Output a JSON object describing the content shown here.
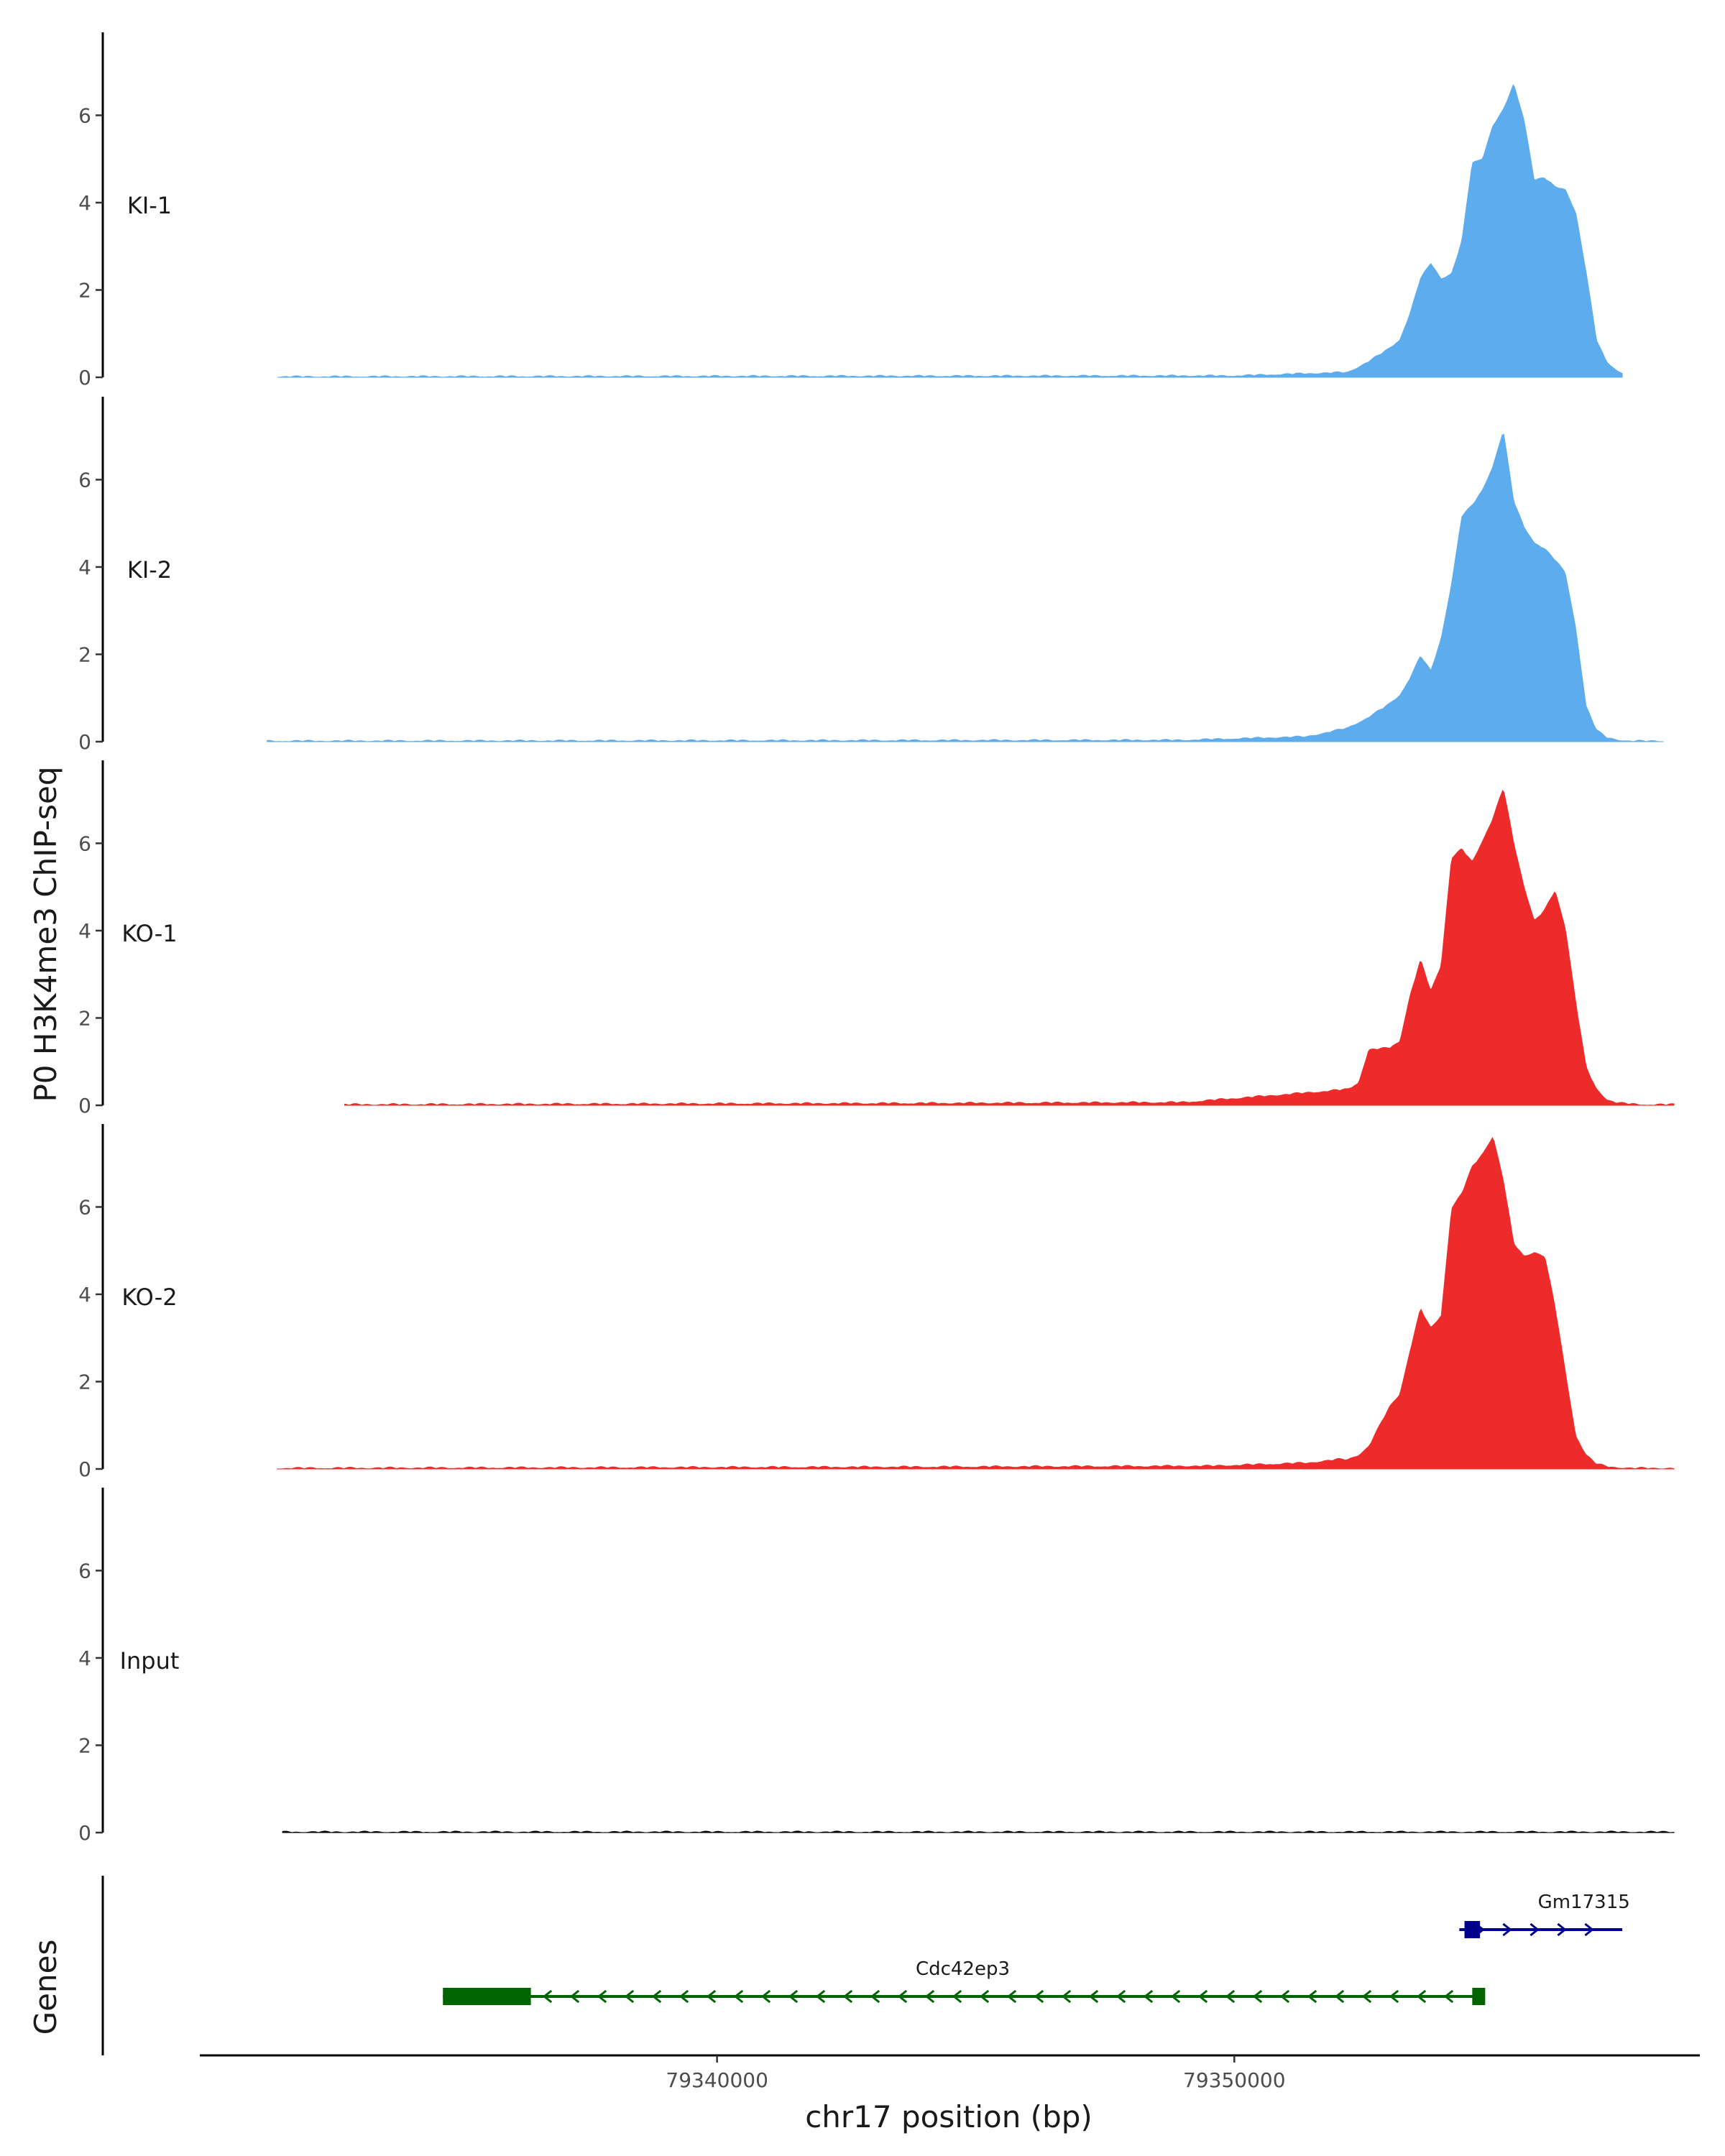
{
  "chart_data": {
    "type": "area",
    "title": "",
    "ylabel": "P0 H3K4me3 ChIP-seq",
    "xlabel": "chr17 position (bp)",
    "xlim": [
      79330000,
      79359000
    ],
    "ylim": [
      0,
      7.9
    ],
    "x_ticks": [
      79340000,
      79350000
    ],
    "x_tick_labels": [
      "79340000",
      "79350000"
    ],
    "y_ticks": [
      0,
      2,
      4,
      6
    ],
    "y_tick_labels": [
      "0",
      "2",
      "4",
      "6"
    ],
    "colors": {
      "KI": "#5daced",
      "KO": "#ee2b2b",
      "Input": "#000000",
      "gene_Cdc42ep3": "#006400",
      "gene_Gm17315": "#00008b"
    },
    "series": [
      {
        "name": "KI-1",
        "color": "#5daced",
        "x": [
          79331500,
          79350000,
          79352200,
          79352600,
          79353000,
          79353200,
          79353400,
          79353600,
          79353800,
          79354000,
          79354200,
          79354400,
          79354600,
          79354800,
          79355000,
          79355200,
          79355400,
          79355600,
          79355800,
          79356000,
          79356200,
          79356400,
          79356600,
          79356800,
          79357000,
          79357200,
          79357400,
          79357600,
          79357800,
          79358000,
          79358100,
          79358500,
          79357500
        ],
        "values": [
          0,
          0.02,
          0.1,
          0.35,
          0.65,
          0.85,
          1.45,
          2.25,
          2.6,
          2.25,
          2.35,
          3.1,
          4.9,
          5.0,
          5.75,
          6.1,
          6.7,
          5.9,
          4.5,
          4.55,
          4.35,
          4.3,
          3.75,
          2.4,
          0.85,
          0.35,
          0.12,
          0.05,
          0.02,
          0.0,
          0.0,
          0.0,
          0.0
        ],
        "wiggle": 0.035
      },
      {
        "name": "KI-2",
        "color": "#5daced",
        "x": [
          79331300,
          79349000,
          79351400,
          79352200,
          79352600,
          79353000,
          79353200,
          79353400,
          79353600,
          79353800,
          79354000,
          79354200,
          79354400,
          79354600,
          79354800,
          79355000,
          79355200,
          79355400,
          79355600,
          79355800,
          79356000,
          79356200,
          79356400,
          79356600,
          79356800,
          79357000,
          79357200,
          79357400,
          79357600,
          79357800,
          79358000,
          79358300
        ],
        "values": [
          0,
          0.02,
          0.1,
          0.3,
          0.55,
          0.85,
          1.05,
          1.45,
          1.95,
          1.6,
          2.35,
          3.6,
          5.15,
          5.4,
          5.75,
          6.3,
          7.1,
          5.5,
          4.9,
          4.55,
          4.4,
          4.15,
          3.85,
          2.6,
          0.8,
          0.25,
          0.08,
          0.03,
          0.0,
          0.0,
          0.0,
          0.0
        ],
        "wiggle": 0.035
      },
      {
        "name": "KO-1",
        "color": "#ee2b2b",
        "x": [
          79332800,
          79344000,
          79349000,
          79351200,
          79352200,
          79352400,
          79352600,
          79353000,
          79353200,
          79353400,
          79353600,
          79353800,
          79354000,
          79354200,
          79354400,
          79354600,
          79354800,
          79355000,
          79355200,
          79355400,
          79355600,
          79355800,
          79356000,
          79356200,
          79356400,
          79356600,
          79356800,
          79357000,
          79357200,
          79357400,
          79357600,
          79357800,
          79358000,
          79358500
        ],
        "values": [
          0,
          0.03,
          0.05,
          0.25,
          0.35,
          0.5,
          1.25,
          1.3,
          1.45,
          2.5,
          3.3,
          2.6,
          3.2,
          5.65,
          5.85,
          5.55,
          6.05,
          6.55,
          7.25,
          6.0,
          5.0,
          4.2,
          4.45,
          4.9,
          4.05,
          2.35,
          0.85,
          0.35,
          0.12,
          0.04,
          0.02,
          0.0,
          0.0,
          0.0
        ],
        "wiggle": 0.04
      },
      {
        "name": "KO-2",
        "color": "#ee2b2b",
        "x": [
          79331500,
          79344000,
          79349500,
          79351400,
          79352000,
          79352200,
          79352400,
          79352600,
          79353000,
          79353200,
          79353400,
          79353600,
          79353800,
          79354000,
          79354200,
          79354400,
          79354600,
          79354800,
          79355000,
          79355200,
          79355400,
          79355600,
          79355800,
          79356000,
          79356200,
          79356400,
          79356600,
          79356800,
          79357000,
          79357200,
          79357400,
          79357600,
          79357800,
          79358000,
          79358500
        ],
        "values": [
          0,
          0.03,
          0.05,
          0.12,
          0.2,
          0.2,
          0.3,
          0.5,
          1.4,
          1.7,
          2.7,
          3.65,
          3.2,
          3.5,
          5.95,
          6.3,
          6.9,
          7.2,
          7.6,
          6.6,
          5.15,
          4.85,
          4.95,
          4.85,
          3.7,
          2.2,
          0.75,
          0.3,
          0.1,
          0.04,
          0.02,
          0.0,
          0.0,
          0.0,
          0.0
        ],
        "wiggle": 0.04
      },
      {
        "name": "Input",
        "color": "#000000",
        "x": [
          79331600,
          79358500
        ],
        "values": [
          0,
          0
        ],
        "wiggle": 0.035
      }
    ],
    "genes": [
      {
        "name": "Cdc42ep3",
        "strand": "-",
        "start": 79334700,
        "end": 79354800,
        "thick_segments": [
          [
            79334700,
            79336400
          ],
          [
            79354600,
            79354850
          ]
        ],
        "color": "#006400",
        "row": 2
      },
      {
        "name": "Gm17315",
        "strand": "+",
        "start": 79354350,
        "end": 79357500,
        "thick_segments": [
          [
            79354450,
            79354750
          ]
        ],
        "color": "#00008b",
        "row": 1
      }
    ],
    "genes_track_label": "Genes"
  }
}
